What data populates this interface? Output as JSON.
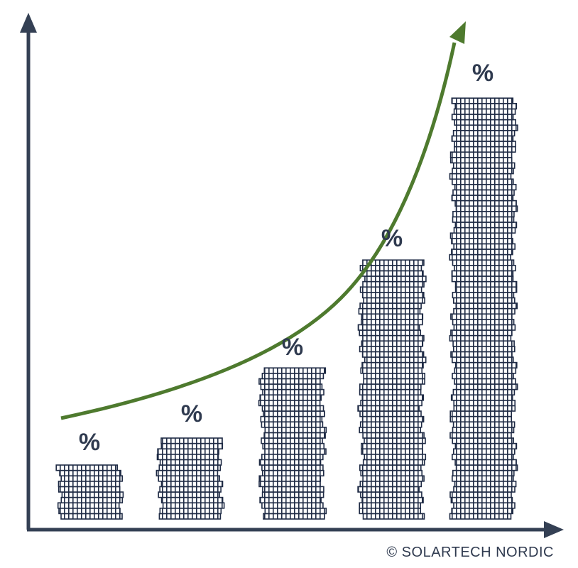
{
  "labels": [
    "%",
    "%",
    "%",
    "%",
    "%"
  ],
  "credit": "© SOLARTECH NORDIC"
}
